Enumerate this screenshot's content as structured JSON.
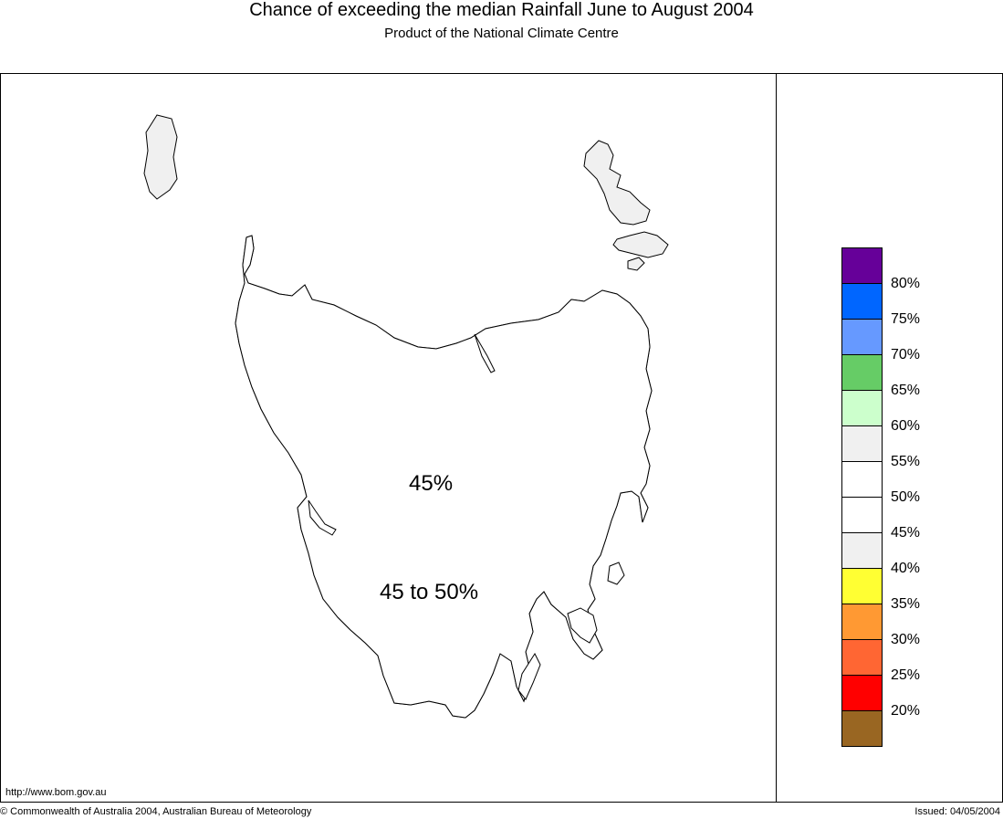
{
  "header": {
    "title": "Chance of exceeding the median Rainfall June to August 2004",
    "subtitle": "Product of the National Climate Centre"
  },
  "map": {
    "regions": [
      {
        "label": "45%",
        "fill": "#f0f0f0"
      },
      {
        "label": "45 to 50%",
        "fill": "#ffffff"
      }
    ]
  },
  "legend": {
    "colors": [
      "#660099",
      "#0066ff",
      "#6699ff",
      "#66cc66",
      "#ccffcc",
      "#f0f0f0",
      "#ffffff",
      "#ffffff",
      "#f0f0f0",
      "#ffff33",
      "#ff9933",
      "#ff6633",
      "#ff0000",
      "#996622"
    ],
    "labels": [
      "80%",
      "75%",
      "70%",
      "65%",
      "60%",
      "55%",
      "50%",
      "45%",
      "40%",
      "35%",
      "30%",
      "25%",
      "20%"
    ]
  },
  "footer": {
    "url": "http://www.bom.gov.au",
    "copyright": "© Commonwealth of Australia 2004, Australian Bureau of Meteorology",
    "issued": "Issued: 04/05/2004"
  }
}
